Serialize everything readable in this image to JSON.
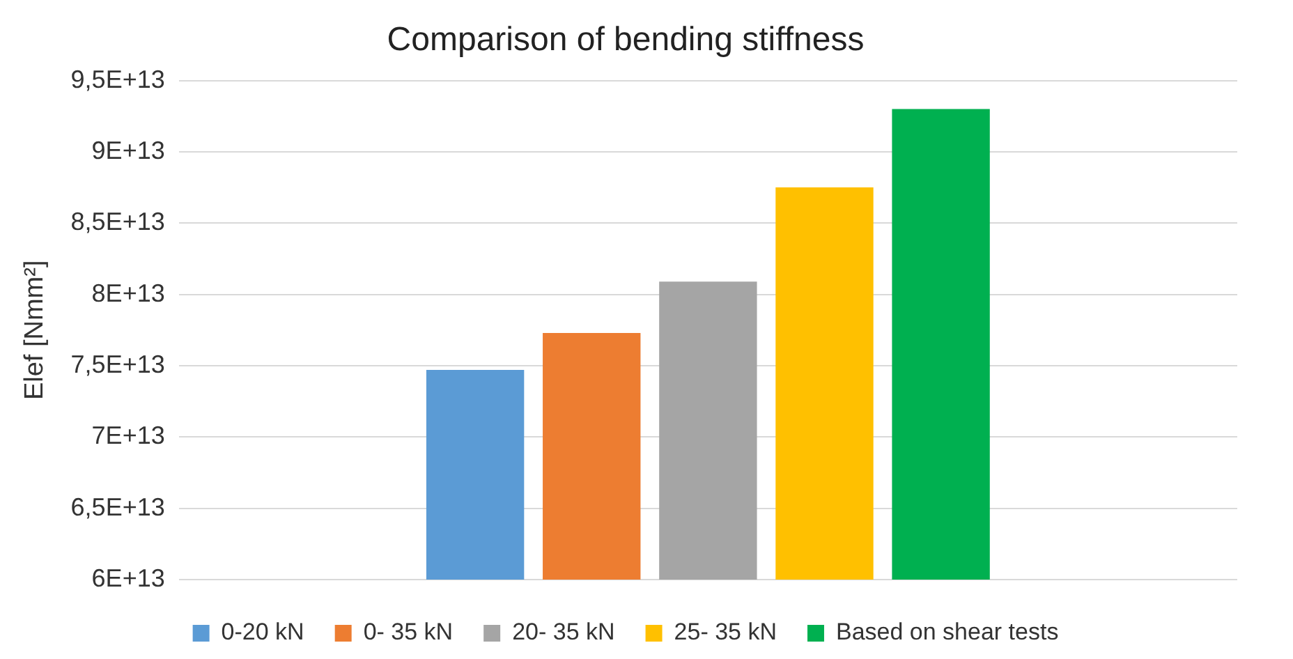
{
  "chart_data": {
    "type": "bar",
    "title": "Comparison of bending stiffness",
    "ylabel": "Elef [Nmm²]",
    "categories": [
      null
    ],
    "series": [
      {
        "name": "0-20 kN",
        "color": "#5b9bd5",
        "values": [
          74700000000000.0
        ]
      },
      {
        "name": "0- 35 kN",
        "color": "#ed7d31",
        "values": [
          77300000000000.0
        ]
      },
      {
        "name": "20- 35 kN",
        "color": "#a5a5a5",
        "values": [
          80900000000000.0
        ]
      },
      {
        "name": "25- 35 kN",
        "color": "#ffc000",
        "values": [
          87500000000000.0
        ]
      },
      {
        "name": "Based on shear tests",
        "color": "#00b050",
        "values": [
          93000000000000.0
        ]
      }
    ],
    "ylim": [
      60000000000000.0,
      95000000000000.0
    ],
    "yticks": [
      {
        "value": 60000000000000.0,
        "label": "6E+13"
      },
      {
        "value": 65000000000000.0,
        "label": "6,5E+13"
      },
      {
        "value": 70000000000000.0,
        "label": "7E+13"
      },
      {
        "value": 75000000000000.0,
        "label": "7,5E+13"
      },
      {
        "value": 80000000000000.0,
        "label": "8E+13"
      },
      {
        "value": 85000000000000.0,
        "label": "8,5E+13"
      },
      {
        "value": 90000000000000.0,
        "label": "9E+13"
      },
      {
        "value": 95000000000000.0,
        "label": "9,5E+13"
      }
    ],
    "grid": "y",
    "legend": "bottom"
  }
}
